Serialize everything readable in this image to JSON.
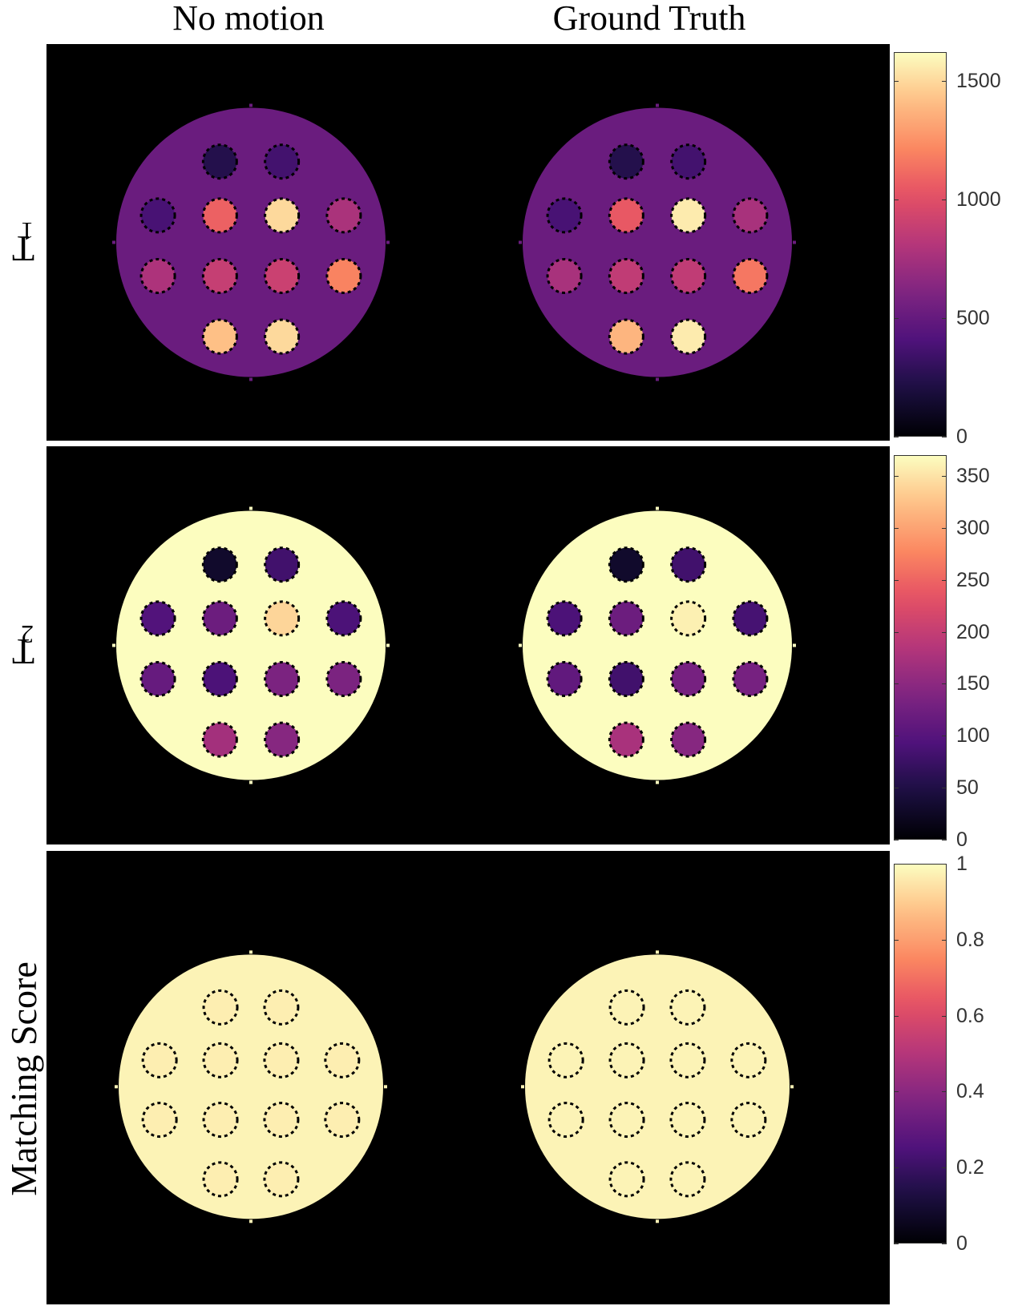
{
  "columns": {
    "left_title": "No motion",
    "right_title": "Ground Truth"
  },
  "rows": [
    {
      "label": "T1",
      "label_main": "T",
      "label_sub": "1",
      "colorbar": {
        "max": 1620,
        "ticks": [
          "0",
          "500",
          "1000",
          "1500"
        ],
        "tick_values": [
          0,
          500,
          1000,
          1500
        ]
      },
      "background": 520,
      "vials": [
        240,
        360,
        380,
        1050,
        1560,
        760,
        760,
        860,
        860,
        1160,
        1380,
        1560
      ],
      "noisy_vials": [
        240,
        360,
        380,
        1080,
        1500,
        770,
        780,
        880,
        900,
        1200,
        1420,
        1500
      ]
    },
    {
      "label": "T2",
      "label_main": "T",
      "label_sub": "2",
      "colorbar": {
        "max": 370,
        "ticks": [
          "0",
          "50",
          "100",
          "150",
          "200",
          "250",
          "300",
          "350"
        ],
        "tick_values": [
          0,
          50,
          100,
          150,
          200,
          250,
          300,
          350
        ]
      },
      "background": 370,
      "vials": [
        30,
        80,
        90,
        120,
        360,
        85,
        110,
        80,
        130,
        130,
        175,
        145
      ],
      "noisy_vials": [
        30,
        80,
        95,
        120,
        340,
        90,
        115,
        90,
        135,
        135,
        170,
        145
      ]
    },
    {
      "label": "Matching Score",
      "colorbar": {
        "max": 1,
        "ticks": [
          "0",
          "0.2",
          "0.4",
          "0.6",
          "0.8",
          "1"
        ],
        "tick_values": [
          0,
          0.2,
          0.4,
          0.6,
          0.8,
          1
        ]
      },
      "background": 0.98,
      "vials": [
        0.98,
        0.98,
        0.98,
        0.98,
        0.98,
        0.98,
        0.98,
        0.98,
        0.98,
        0.98,
        0.98,
        0.98
      ],
      "noisy_vials": [
        0.97,
        0.97,
        0.97,
        0.97,
        0.97,
        0.97,
        0.97,
        0.97,
        0.97,
        0.97,
        0.97,
        0.97
      ]
    }
  ],
  "colormap": "magma"
}
